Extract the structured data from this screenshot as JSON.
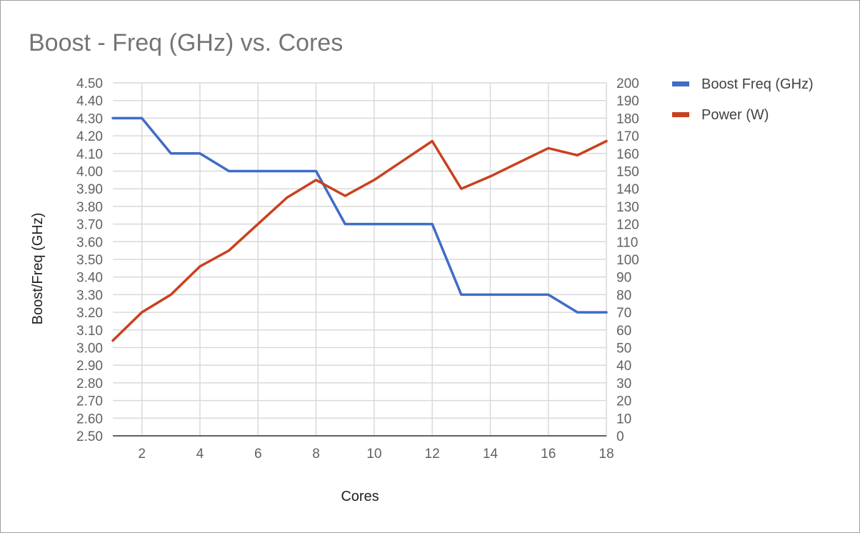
{
  "chart_data": {
    "type": "line",
    "title": "Boost - Freq (GHz) vs. Cores",
    "xlabel": "Cores",
    "ylabel": "Boost/Freq (GHz)",
    "x": [
      1,
      2,
      3,
      4,
      5,
      6,
      7,
      8,
      9,
      10,
      11,
      12,
      13,
      14,
      15,
      16,
      17,
      18
    ],
    "xlim": [
      1,
      18
    ],
    "x_ticks": [
      2,
      4,
      6,
      8,
      10,
      12,
      14,
      16,
      18
    ],
    "x_tick_labels": [
      "2",
      "4",
      "6",
      "8",
      "10",
      "12",
      "14",
      "16",
      "18"
    ],
    "ylim_left": [
      2.5,
      4.5
    ],
    "y_left_tick_labels": [
      "2.50",
      "2.60",
      "2.70",
      "2.80",
      "2.90",
      "3.00",
      "3.10",
      "3.20",
      "3.30",
      "3.40",
      "3.50",
      "3.60",
      "3.70",
      "3.80",
      "3.90",
      "4.00",
      "4.10",
      "4.20",
      "4.30",
      "4.40",
      "4.50"
    ],
    "ylim_right": [
      0,
      200
    ],
    "y_right_tick_labels": [
      "0",
      "10",
      "20",
      "30",
      "40",
      "50",
      "60",
      "70",
      "80",
      "90",
      "100",
      "110",
      "120",
      "130",
      "140",
      "150",
      "160",
      "170",
      "180",
      "190",
      "200"
    ],
    "grid": true,
    "legend_position": "right",
    "series": [
      {
        "name": "Boost Freq (GHz)",
        "axis": "left",
        "color": "#3f6cc7",
        "values": [
          4.3,
          4.3,
          4.1,
          4.1,
          4.0,
          4.0,
          4.0,
          4.0,
          3.7,
          3.7,
          3.7,
          3.7,
          3.3,
          3.3,
          3.3,
          3.3,
          3.2,
          3.2
        ]
      },
      {
        "name": "Power (W)",
        "axis": "right",
        "color": "#c9411e",
        "values": [
          54,
          70,
          80,
          96,
          105,
          120,
          135,
          145,
          136,
          145,
          156,
          167,
          140,
          147,
          155,
          163,
          159,
          167
        ]
      }
    ]
  }
}
